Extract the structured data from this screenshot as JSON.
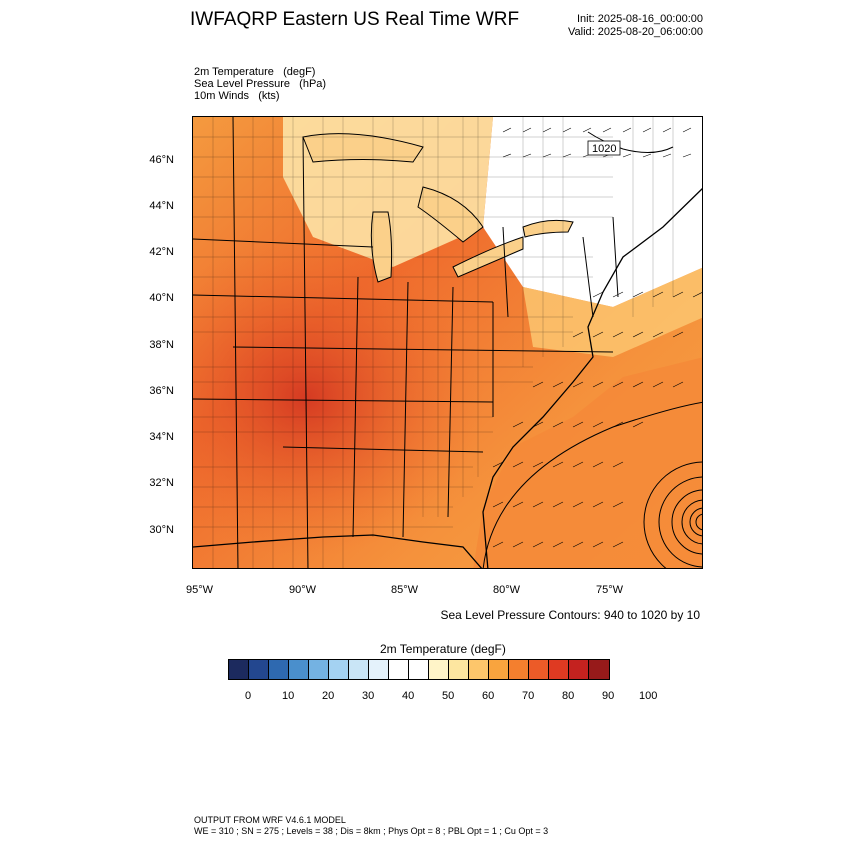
{
  "header": {
    "title": "IWFAQRP Eastern US Real Time WRF",
    "init": "Init: 2025-08-16_00:00:00",
    "valid": "Valid: 2025-08-20_06:00:00"
  },
  "fields": [
    {
      "name": "2m Temperature",
      "unit": "(degF)"
    },
    {
      "name": "Sea Level Pressure",
      "unit": "(hPa)"
    },
    {
      "name": "10m Winds",
      "unit": "(kts)"
    }
  ],
  "map": {
    "lat_labels": [
      "46°N",
      "44°N",
      "42°N",
      "40°N",
      "38°N",
      "36°N",
      "34°N",
      "32°N",
      "30°N"
    ],
    "lon_labels": [
      "95°W",
      "90°W",
      "85°W",
      "80°W",
      "75°W"
    ],
    "isobar_label": "1020",
    "contour_note": "Sea Level Pressure Contours: 940 to 1020 by 10"
  },
  "colorbar": {
    "title": "2m Temperature  (degF)",
    "labels": [
      "0",
      "10",
      "20",
      "30",
      "40",
      "50",
      "60",
      "70",
      "80",
      "90",
      "100"
    ],
    "colors": [
      "#1c2a5e",
      "#23478f",
      "#2e69b0",
      "#4a8fcc",
      "#74b2e2",
      "#a4d2f2",
      "#c9e5f6",
      "#e4f2fb",
      "#ffffff",
      "#ffffff",
      "#fff4c8",
      "#fde6a0",
      "#fdc66b",
      "#f9a43e",
      "#f47f2e",
      "#ec5b28",
      "#df3a22",
      "#c4221f",
      "#971a1a"
    ]
  },
  "footer": {
    "line1": "OUTPUT FROM WRF V4.6.1 MODEL",
    "line2": "WE = 310 ; SN = 275 ; Levels = 38 ; Dis = 8km ; Phys Opt = 8 ; PBL Opt = 1 ; Cu Opt = 3"
  }
}
